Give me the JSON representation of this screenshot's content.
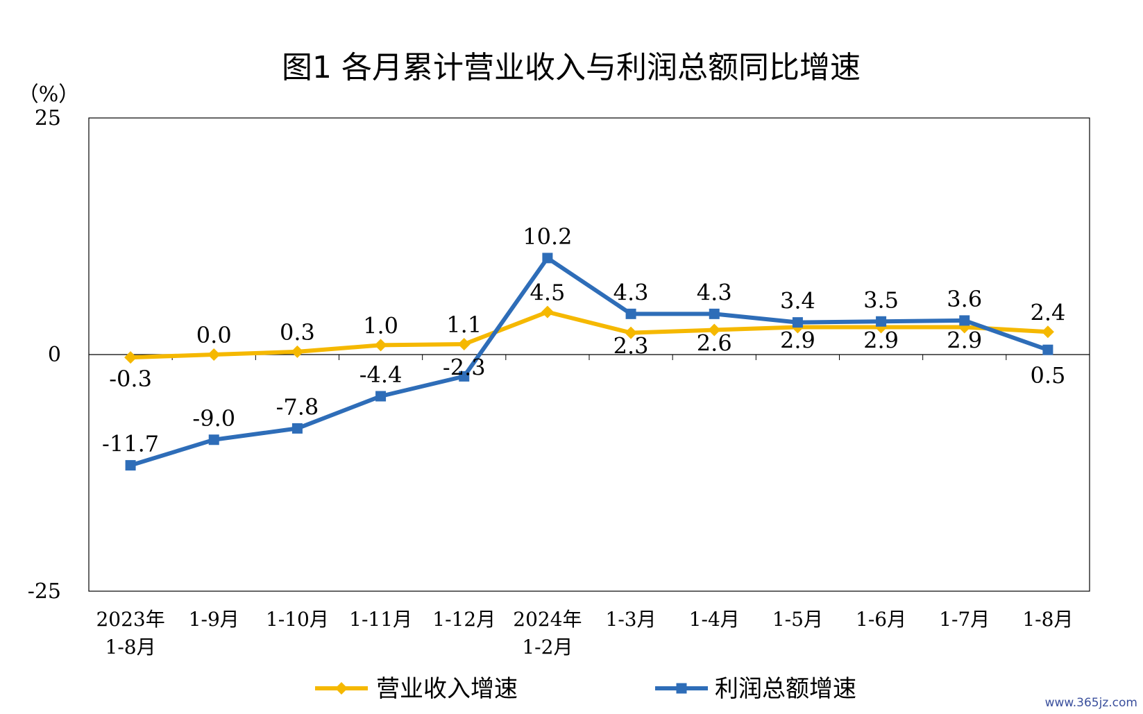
{
  "chart_data": {
    "type": "line",
    "title": "图1  各月累计营业收入与利润总额同比增速",
    "ylabel": "（%）",
    "ylim": [
      -25,
      25
    ],
    "yticks": [
      "25",
      "0",
      "-25"
    ],
    "categories": [
      [
        "2023年",
        "1-8月"
      ],
      [
        "1-9月"
      ],
      [
        "1-10月"
      ],
      [
        "1-11月"
      ],
      [
        "1-12月"
      ],
      [
        "2024年",
        "1-2月"
      ],
      [
        "1-3月"
      ],
      [
        "1-4月"
      ],
      [
        "1-5月"
      ],
      [
        "1-6月"
      ],
      [
        "1-7月"
      ],
      [
        "1-8月"
      ]
    ],
    "series": [
      {
        "name": "营业收入增速",
        "color": "#F5B800",
        "marker": "diamond",
        "values": [
          -0.3,
          0.0,
          0.3,
          1.0,
          1.1,
          4.5,
          2.3,
          2.6,
          2.9,
          2.9,
          2.9,
          2.4
        ],
        "labels": [
          "-0.3",
          "0.0",
          "0.3",
          "1.0",
          "1.1",
          "4.5",
          "2.3",
          "2.6",
          "2.9",
          "2.9",
          "2.9",
          "2.4"
        ]
      },
      {
        "name": "利润总额增速",
        "color": "#2E6DB8",
        "marker": "square",
        "values": [
          -11.7,
          -9.0,
          -7.8,
          -4.4,
          -2.3,
          10.2,
          4.3,
          4.3,
          3.4,
          3.5,
          3.6,
          0.5
        ],
        "labels": [
          "-11.7",
          "-9.0",
          "-7.8",
          "-4.4",
          "-2.3",
          "10.2",
          "4.3",
          "4.3",
          "3.4",
          "3.5",
          "3.6",
          "0.5"
        ]
      }
    ],
    "legend_position": "bottom"
  },
  "watermark": "www.365jz.com"
}
